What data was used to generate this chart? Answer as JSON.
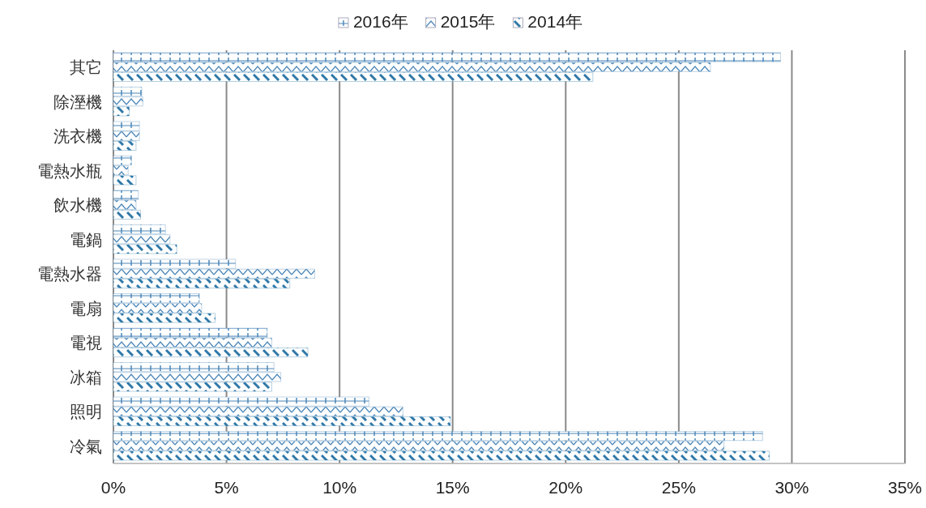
{
  "chart_data": {
    "type": "bar",
    "orientation": "horizontal",
    "categories": [
      "其它",
      "除溼機",
      "洗衣機",
      "電熱水瓶",
      "飲水機",
      "電鍋",
      "電熱水器",
      "電扇",
      "電視",
      "冰箱",
      "照明",
      "冷氣"
    ],
    "series": [
      {
        "name": "2016年",
        "color": "#4a86b8",
        "values": [
          29.5,
          1.25,
          1.15,
          0.8,
          1.1,
          2.3,
          5.4,
          3.8,
          6.8,
          7.1,
          11.3,
          28.7
        ]
      },
      {
        "name": "2015年",
        "color": "#4a86b8",
        "values": [
          26.4,
          1.3,
          1.15,
          0.65,
          1.0,
          2.5,
          8.9,
          3.9,
          7.0,
          7.4,
          12.8,
          27.0
        ]
      },
      {
        "name": "2014年",
        "color": "#2f78a8",
        "values": [
          21.2,
          0.7,
          1.0,
          1.0,
          1.2,
          2.8,
          7.8,
          4.5,
          8.6,
          7.0,
          14.9,
          29.0
        ]
      }
    ],
    "xlim": [
      0,
      35
    ],
    "xticks": [
      {
        "value": 0,
        "label": "0%"
      },
      {
        "value": 5,
        "label": "5%"
      },
      {
        "value": 10,
        "label": "10%"
      },
      {
        "value": 15,
        "label": "15%"
      },
      {
        "value": 20,
        "label": "20%"
      },
      {
        "value": 25,
        "label": "25%"
      },
      {
        "value": 30,
        "label": "30%"
      },
      {
        "value": 35,
        "label": "35%"
      }
    ],
    "grid": "x",
    "legend": "top"
  }
}
